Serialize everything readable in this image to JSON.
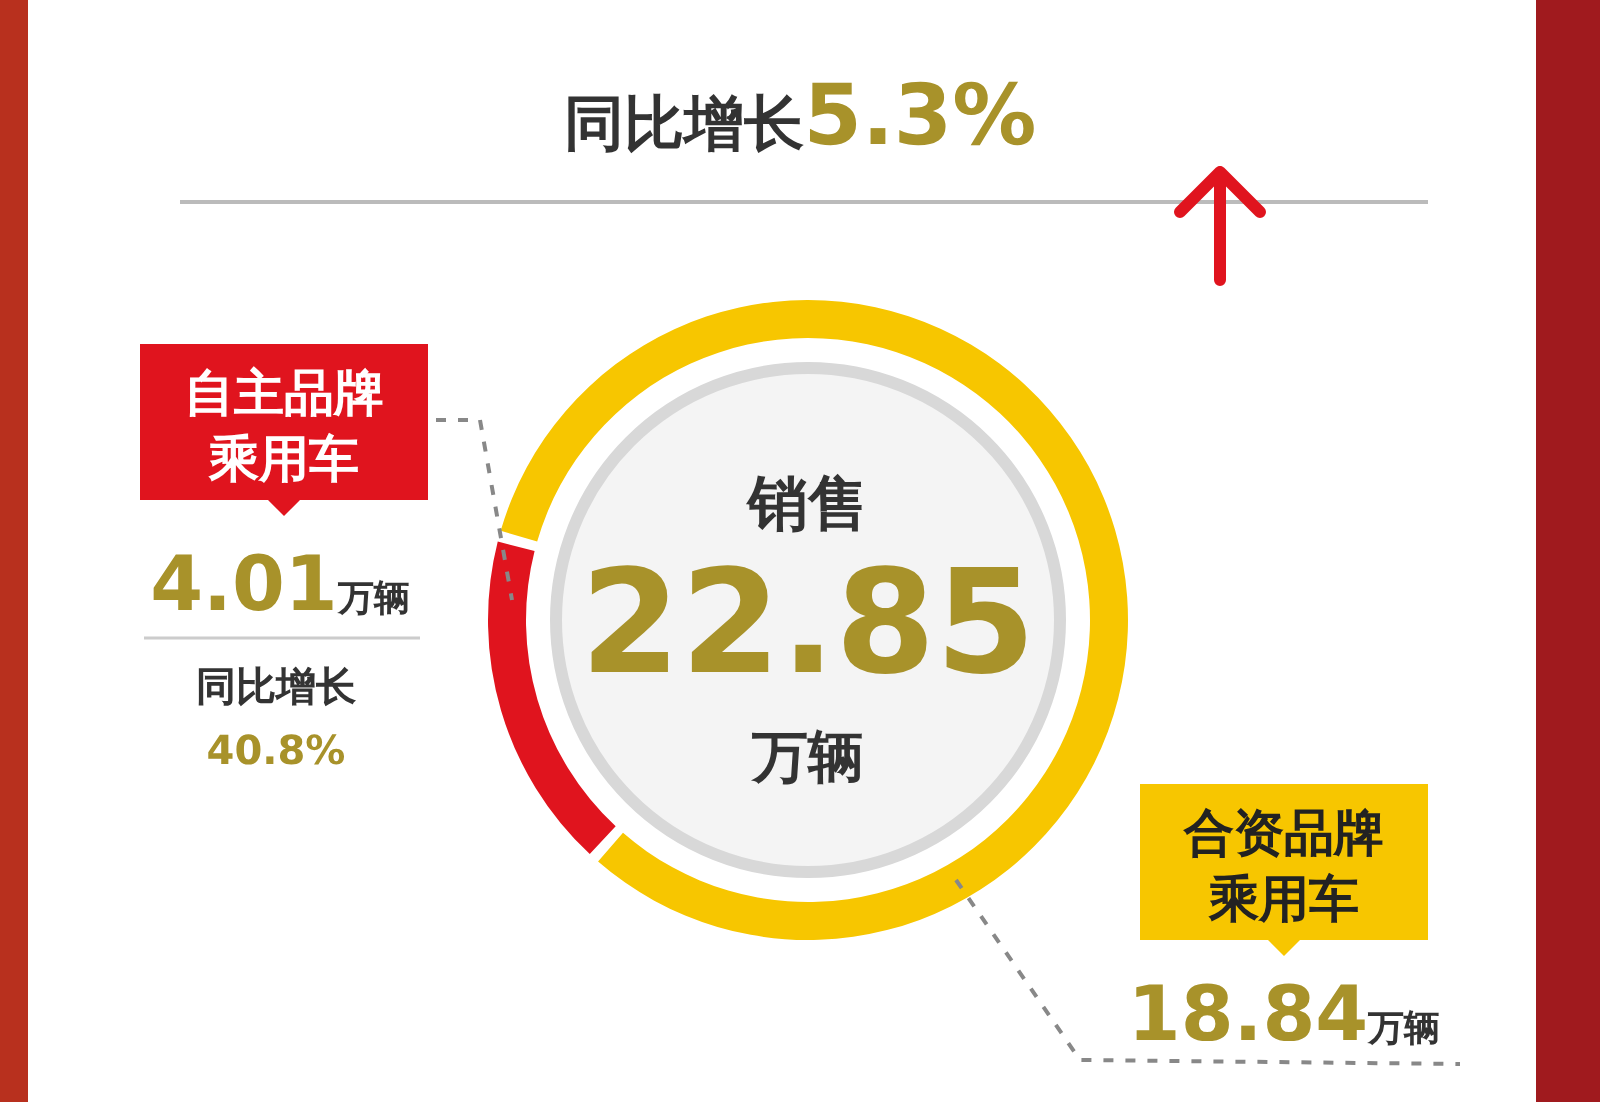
{
  "chart_data": {
    "type": "donut",
    "title": "同比增长5.3%",
    "categories": [
      "自主品牌乘用车",
      "合资品牌乘用车"
    ],
    "values": [
      4.01,
      18.84
    ],
    "colors": [
      "#e0141e",
      "#f7c600"
    ],
    "value_labels": [
      "4.01万辆",
      "18.84万辆"
    ],
    "annotations": [
      "销售",
      "22.85",
      "万辆",
      "同比增长",
      "40.8%"
    ],
    "legend": false
  }
}
